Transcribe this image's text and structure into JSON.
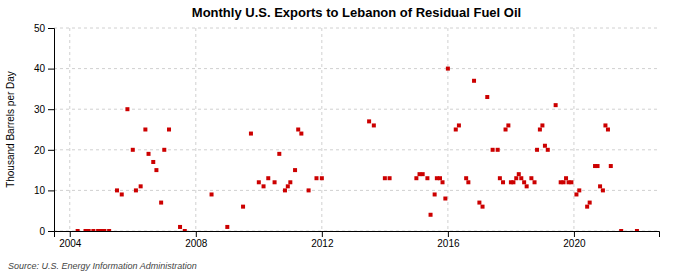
{
  "chart_data": {
    "type": "scatter",
    "title": "Monthly U.S. Exports to Lebanon of Residual Fuel Oil",
    "ylabel": "Thousand Barrels per Day",
    "annotations": [
      "Source: U.S. Energy Information Administration"
    ],
    "color": "#cc0000",
    "marker": "square",
    "grid": true,
    "xlim": [
      2003.5,
      2022.7
    ],
    "xticks": [
      2004,
      2008,
      2012,
      2016,
      2020
    ],
    "ylim": [
      0,
      50
    ],
    "yticks": [
      0,
      10,
      20,
      30,
      40,
      50
    ],
    "x": [
      2004.25,
      2004.5,
      2004.6,
      2004.75,
      2004.9,
      2005.0,
      2005.1,
      2005.25,
      2005.5,
      2005.65,
      2005.83,
      2006.0,
      2006.1,
      2006.25,
      2006.4,
      2006.5,
      2006.65,
      2006.75,
      2006.9,
      2007.0,
      2007.15,
      2007.5,
      2007.65,
      2008.5,
      2009.0,
      2009.5,
      2009.75,
      2010.0,
      2010.15,
      2010.3,
      2010.5,
      2010.65,
      2010.83,
      2010.92,
      2011.0,
      2011.15,
      2011.25,
      2011.35,
      2011.58,
      2011.83,
      2012.0,
      2013.5,
      2013.65,
      2014.0,
      2014.15,
      2015.0,
      2015.1,
      2015.2,
      2015.35,
      2015.45,
      2015.58,
      2015.65,
      2015.75,
      2015.83,
      2015.92,
      2016.0,
      2016.25,
      2016.35,
      2016.58,
      2016.65,
      2016.83,
      2017.0,
      2017.1,
      2017.25,
      2017.42,
      2017.58,
      2017.65,
      2017.75,
      2017.83,
      2017.92,
      2018.0,
      2018.08,
      2018.17,
      2018.25,
      2018.33,
      2018.42,
      2018.5,
      2018.65,
      2018.75,
      2018.83,
      2018.92,
      2019.0,
      2019.08,
      2019.17,
      2019.42,
      2019.58,
      2019.67,
      2019.75,
      2019.83,
      2019.92,
      2020.08,
      2020.17,
      2020.42,
      2020.5,
      2020.67,
      2020.75,
      2020.83,
      2020.92,
      2021.0,
      2021.08,
      2021.17,
      2021.5,
      2022.0
    ],
    "values": [
      0,
      0,
      0,
      0,
      0,
      0,
      0,
      0,
      10,
      9,
      30,
      20,
      10,
      11,
      25,
      19,
      17,
      15,
      7,
      20,
      25,
      1,
      0,
      9,
      1,
      6,
      24,
      12,
      11,
      13,
      12,
      19,
      10,
      11,
      12,
      15,
      25,
      24,
      10,
      13,
      13,
      27,
      26,
      13,
      13,
      13,
      14,
      14,
      13,
      4,
      9,
      13,
      13,
      12,
      8,
      40,
      25,
      26,
      13,
      12,
      37,
      7,
      6,
      33,
      20,
      20,
      13,
      12,
      25,
      26,
      12,
      12,
      13,
      14,
      13,
      12,
      11,
      13,
      12,
      20,
      25,
      26,
      21,
      20,
      31,
      12,
      12,
      13,
      12,
      12,
      9,
      10,
      6,
      7,
      16,
      16,
      11,
      10,
      26,
      25,
      16,
      0,
      0
    ]
  }
}
